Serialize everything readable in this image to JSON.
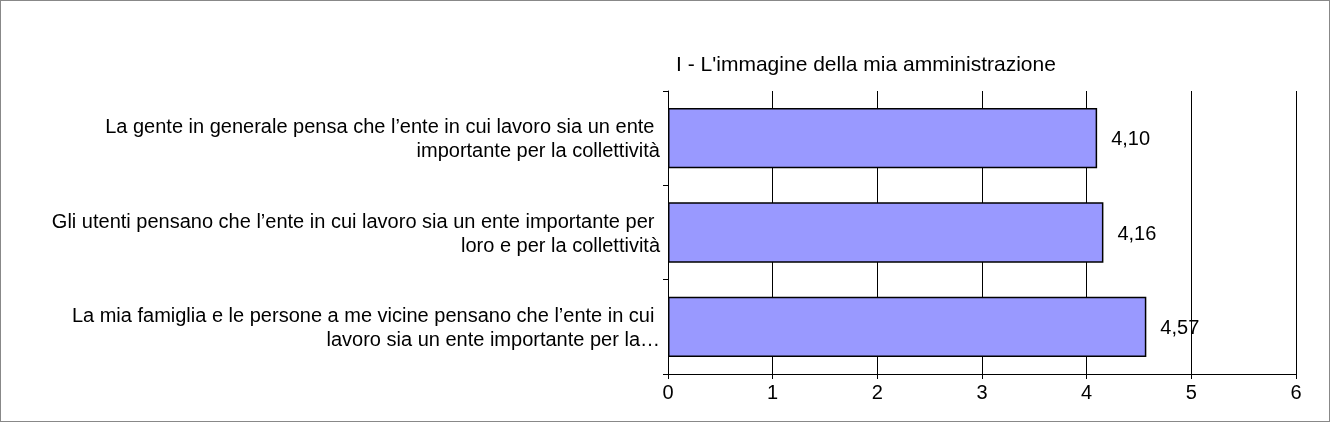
{
  "chart_data": {
    "type": "bar",
    "orientation": "horizontal",
    "title": "I - L'immagine della mia amministrazione",
    "categories": [
      "La gente in generale pensa che l’ente in cui lavoro sia un ente importante per la collettività",
      "Gli utenti pensano che l’ente in cui lavoro sia un ente importante per loro e per la collettività",
      "La mia famiglia e le persone a me vicine pensano che l’ente in cui lavoro sia un ente importante per la…"
    ],
    "values": [
      4.1,
      4.16,
      4.57
    ],
    "value_labels": [
      "4,10",
      "4,16",
      "4,57"
    ],
    "color": "#9999ff",
    "xlim": [
      0,
      6
    ],
    "xticks": [
      0,
      1,
      2,
      3,
      4,
      5,
      6
    ],
    "grid": "x"
  }
}
